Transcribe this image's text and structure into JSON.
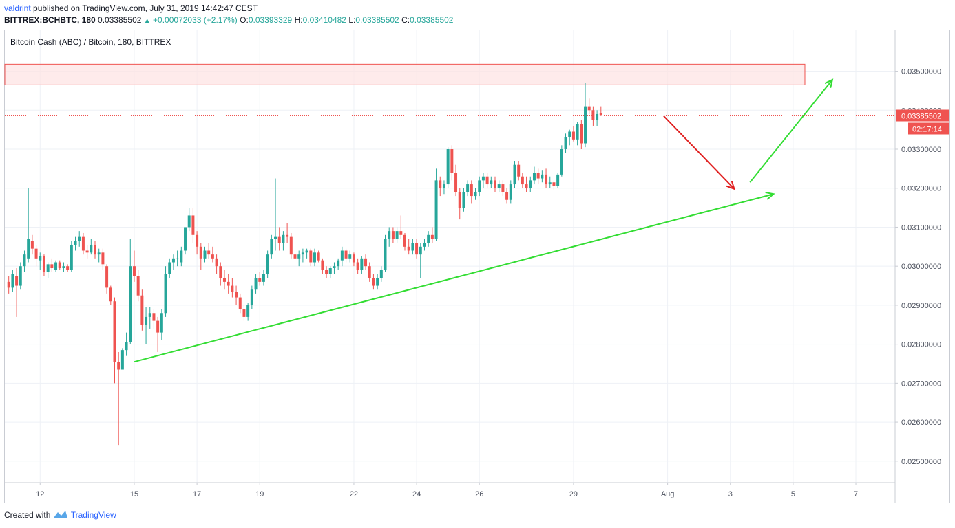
{
  "header": {
    "author": "valdrint",
    "published_text": "published on TradingView.com, July 31, 2019 14:42:47 CEST",
    "symbol": "BITTREX:BCHBTC, 180",
    "last": "0.03385502",
    "change": "+0.00072033 (+2.17%)",
    "o_label": "O:",
    "o_value": "0.03393329",
    "h_label": "H:",
    "h_value": "0.03410482",
    "l_label": "L:",
    "l_value": "0.03385502",
    "c_label": "C:",
    "c_value": "0.03385502"
  },
  "pane_title": "Bitcoin Cash (ABC) / Bitcoin, 180, BITTREX",
  "footer": {
    "created_with": "Created with",
    "brand": "TradingView"
  },
  "price_badge": {
    "price": "0.03385502",
    "countdown": "02:17:14"
  },
  "colors": {
    "up": "#26a69a",
    "down": "#ef5350",
    "trend": "#33dd33",
    "arrow_down": "#e02020",
    "zone_fill": "#fde3e3",
    "zone_stroke": "#ef5350"
  },
  "chart_data": {
    "type": "candlestick",
    "y_ticks": [
      "0.03500000",
      "0.03400000",
      "0.03300000",
      "0.03200000",
      "0.03100000",
      "0.03000000",
      "0.02900000",
      "0.02800000",
      "0.02700000",
      "0.02600000",
      "0.02500000"
    ],
    "y_tick_values": [
      0.035,
      0.034,
      0.033,
      0.032,
      0.031,
      0.03,
      0.029,
      0.028,
      0.027,
      0.026,
      0.025
    ],
    "ylim": [
      0.02445,
      0.03605
    ],
    "x_ticks": [
      "12",
      "15",
      "17",
      "19",
      "22",
      "24",
      "26",
      "29",
      "Aug",
      "3",
      "5",
      "7"
    ],
    "x_tick_values": [
      "2019-07-12",
      "2019-07-15",
      "2019-07-17",
      "2019-07-19",
      "2019-07-22",
      "2019-07-24",
      "2019-07-26",
      "2019-07-29",
      "2019-08-01",
      "2019-08-03",
      "2019-08-05",
      "2019-08-07"
    ],
    "xlim": [
      "2019-07-10 21:00",
      "2019-08-08 06:00"
    ],
    "candle_interval_minutes": 180,
    "first_candle": "2019-07-11 00:00",
    "candles": [
      [
        0.0296,
        0.02975,
        0.0293,
        0.02945
      ],
      [
        0.02945,
        0.0299,
        0.02935,
        0.0298
      ],
      [
        0.02975,
        0.02995,
        0.0287,
        0.0295
      ],
      [
        0.0295,
        0.0301,
        0.0294,
        0.03
      ],
      [
        0.03,
        0.0304,
        0.02985,
        0.0303
      ],
      [
        0.0302,
        0.032,
        0.0301,
        0.0307
      ],
      [
        0.03065,
        0.0308,
        0.0303,
        0.03045
      ],
      [
        0.03045,
        0.03055,
        0.03,
        0.0302
      ],
      [
        0.03015,
        0.03035,
        0.0299,
        0.03025
      ],
      [
        0.03025,
        0.0303,
        0.02975,
        0.02985
      ],
      [
        0.02985,
        0.0301,
        0.0297,
        0.03005
      ],
      [
        0.03005,
        0.0302,
        0.02985,
        0.02995
      ],
      [
        0.0299,
        0.03015,
        0.02985,
        0.0301
      ],
      [
        0.0301,
        0.03015,
        0.0299,
        0.02995
      ],
      [
        0.02995,
        0.0301,
        0.02985,
        0.03
      ],
      [
        0.03,
        0.03005,
        0.02985,
        0.0299
      ],
      [
        0.0299,
        0.03065,
        0.02985,
        0.03055
      ],
      [
        0.03055,
        0.03075,
        0.0304,
        0.03065
      ],
      [
        0.03065,
        0.0309,
        0.0305,
        0.03075
      ],
      [
        0.03075,
        0.03085,
        0.0303,
        0.0304
      ],
      [
        0.0304,
        0.03055,
        0.0302,
        0.03035
      ],
      [
        0.03035,
        0.0307,
        0.0303,
        0.03055
      ],
      [
        0.03055,
        0.03065,
        0.0302,
        0.0303
      ],
      [
        0.0303,
        0.03045,
        0.0301,
        0.03035
      ],
      [
        0.03035,
        0.03045,
        0.0299,
        0.03005
      ],
      [
        0.03,
        0.03005,
        0.0293,
        0.02945
      ],
      [
        0.02945,
        0.0295,
        0.029,
        0.0291
      ],
      [
        0.0291,
        0.0292,
        0.027,
        0.02755
      ],
      [
        0.02755,
        0.0278,
        0.0254,
        0.02735
      ],
      [
        0.02735,
        0.0279,
        0.02735,
        0.02785
      ],
      [
        0.02785,
        0.0283,
        0.0277,
        0.02805
      ],
      [
        0.02805,
        0.0307,
        0.028,
        0.03
      ],
      [
        0.03,
        0.0304,
        0.0296,
        0.02975
      ],
      [
        0.02975,
        0.0299,
        0.0291,
        0.02925
      ],
      [
        0.02925,
        0.0294,
        0.02835,
        0.0285
      ],
      [
        0.0285,
        0.02895,
        0.028,
        0.0287
      ],
      [
        0.0287,
        0.02895,
        0.0284,
        0.0288
      ],
      [
        0.0288,
        0.0289,
        0.0284,
        0.0286
      ],
      [
        0.0286,
        0.0287,
        0.0278,
        0.0283
      ],
      [
        0.0283,
        0.0289,
        0.0281,
        0.0288
      ],
      [
        0.0288,
        0.03,
        0.0287,
        0.0298
      ],
      [
        0.0298,
        0.0302,
        0.0297,
        0.0301
      ],
      [
        0.0301,
        0.0303,
        0.0299,
        0.0302
      ],
      [
        0.0302,
        0.0304,
        0.03,
        0.0302
      ],
      [
        0.0301,
        0.0305,
        0.03,
        0.0304
      ],
      [
        0.0304,
        0.031,
        0.0303,
        0.031
      ],
      [
        0.031,
        0.0315,
        0.0309,
        0.0313
      ],
      [
        0.0313,
        0.0315,
        0.0306,
        0.0308
      ],
      [
        0.0308,
        0.0309,
        0.0303,
        0.0305
      ],
      [
        0.0305,
        0.0306,
        0.0299,
        0.0302
      ],
      [
        0.0302,
        0.0305,
        0.0301,
        0.0304
      ],
      [
        0.0304,
        0.0306,
        0.0302,
        0.0303
      ],
      [
        0.0303,
        0.0305,
        0.0301,
        0.0302
      ],
      [
        0.0302,
        0.0303,
        0.0298,
        0.03
      ],
      [
        0.03,
        0.0301,
        0.0295,
        0.0297
      ],
      [
        0.0297,
        0.0299,
        0.0294,
        0.0296
      ],
      [
        0.0296,
        0.0298,
        0.0293,
        0.0295
      ],
      [
        0.0295,
        0.0297,
        0.0292,
        0.02935
      ],
      [
        0.02935,
        0.0295,
        0.029,
        0.0292
      ],
      [
        0.0292,
        0.0293,
        0.0288,
        0.0289
      ],
      [
        0.0289,
        0.029,
        0.0286,
        0.0287
      ],
      [
        0.0287,
        0.02905,
        0.0286,
        0.029
      ],
      [
        0.029,
        0.0295,
        0.0289,
        0.0294
      ],
      [
        0.0294,
        0.0298,
        0.0293,
        0.0297
      ],
      [
        0.0297,
        0.02985,
        0.0295,
        0.0296
      ],
      [
        0.0296,
        0.0299,
        0.0295,
        0.0298
      ],
      [
        0.0298,
        0.0304,
        0.0297,
        0.0303
      ],
      [
        0.0303,
        0.0308,
        0.0302,
        0.0307
      ],
      [
        0.0307,
        0.03225,
        0.0304,
        0.03075
      ],
      [
        0.03075,
        0.031,
        0.0304,
        0.0306
      ],
      [
        0.0306,
        0.0309,
        0.0304,
        0.0308
      ],
      [
        0.0308,
        0.0311,
        0.0306,
        0.03075
      ],
      [
        0.03075,
        0.03085,
        0.0302,
        0.0303
      ],
      [
        0.0303,
        0.0304,
        0.0301,
        0.0302
      ],
      [
        0.0302,
        0.0304,
        0.03,
        0.0303
      ],
      [
        0.0303,
        0.03045,
        0.0301,
        0.03035
      ],
      [
        0.03035,
        0.03045,
        0.0302,
        0.0304
      ],
      [
        0.0304,
        0.03045,
        0.03,
        0.0301
      ],
      [
        0.0301,
        0.03045,
        0.03,
        0.03035
      ],
      [
        0.03035,
        0.0304,
        0.0301,
        0.03015
      ],
      [
        0.03015,
        0.0302,
        0.0298,
        0.0299
      ],
      [
        0.0299,
        0.03,
        0.0297,
        0.0298
      ],
      [
        0.0298,
        0.03,
        0.0297,
        0.02995
      ],
      [
        0.02995,
        0.0301,
        0.0298,
        0.03
      ],
      [
        0.03,
        0.0302,
        0.0299,
        0.03015
      ],
      [
        0.03015,
        0.0305,
        0.03,
        0.0304
      ],
      [
        0.0304,
        0.03045,
        0.0301,
        0.0302
      ],
      [
        0.0302,
        0.0304,
        0.0301,
        0.0303
      ],
      [
        0.0303,
        0.03035,
        0.03,
        0.0301
      ],
      [
        0.0301,
        0.0302,
        0.0298,
        0.0299
      ],
      [
        0.0299,
        0.03025,
        0.0298,
        0.0302
      ],
      [
        0.0302,
        0.0303,
        0.0299,
        0.03
      ],
      [
        0.03,
        0.0301,
        0.0296,
        0.0297
      ],
      [
        0.0297,
        0.0298,
        0.0294,
        0.0295
      ],
      [
        0.0295,
        0.0298,
        0.0294,
        0.0297
      ],
      [
        0.0297,
        0.03,
        0.0296,
        0.0299
      ],
      [
        0.0299,
        0.0308,
        0.02985,
        0.0307
      ],
      [
        0.0307,
        0.031,
        0.0305,
        0.0309
      ],
      [
        0.0309,
        0.031,
        0.0306,
        0.0307
      ],
      [
        0.0307,
        0.031,
        0.0306,
        0.0309
      ],
      [
        0.0309,
        0.0313,
        0.0307,
        0.0308
      ],
      [
        0.0308,
        0.03085,
        0.0304,
        0.0305
      ],
      [
        0.0305,
        0.0307,
        0.0303,
        0.0304
      ],
      [
        0.0304,
        0.0307,
        0.0303,
        0.0306
      ],
      [
        0.0306,
        0.0307,
        0.0302,
        0.0303
      ],
      [
        0.0303,
        0.0306,
        0.0297,
        0.0305
      ],
      [
        0.0305,
        0.0307,
        0.0304,
        0.0306
      ],
      [
        0.0306,
        0.0309,
        0.0305,
        0.0308
      ],
      [
        0.0308,
        0.031,
        0.0306,
        0.0307
      ],
      [
        0.0307,
        0.0325,
        0.03065,
        0.0322
      ],
      [
        0.0322,
        0.0323,
        0.0318,
        0.032
      ],
      [
        0.032,
        0.0322,
        0.03185,
        0.0321
      ],
      [
        0.0321,
        0.03305,
        0.032,
        0.033
      ],
      [
        0.033,
        0.0331,
        0.0322,
        0.0324
      ],
      [
        0.0324,
        0.0326,
        0.0318,
        0.0319
      ],
      [
        0.0319,
        0.032,
        0.0312,
        0.0315
      ],
      [
        0.0315,
        0.032,
        0.0314,
        0.0319
      ],
      [
        0.0319,
        0.0322,
        0.0318,
        0.0321
      ],
      [
        0.0321,
        0.0322,
        0.0316,
        0.0318
      ],
      [
        0.0318,
        0.032,
        0.0317,
        0.0319
      ],
      [
        0.0319,
        0.0323,
        0.0318,
        0.0322
      ],
      [
        0.0322,
        0.0324,
        0.032,
        0.0323
      ],
      [
        0.0323,
        0.0324,
        0.032,
        0.0321
      ],
      [
        0.0321,
        0.0323,
        0.032,
        0.0322
      ],
      [
        0.0322,
        0.0323,
        0.0319,
        0.032
      ],
      [
        0.032,
        0.0322,
        0.0319,
        0.0321
      ],
      [
        0.0321,
        0.0322,
        0.0318,
        0.0319
      ],
      [
        0.0319,
        0.032,
        0.0316,
        0.0317
      ],
      [
        0.0317,
        0.0322,
        0.0316,
        0.0321
      ],
      [
        0.0321,
        0.0327,
        0.032,
        0.0326
      ],
      [
        0.0326,
        0.0327,
        0.0322,
        0.0323
      ],
      [
        0.0323,
        0.0324,
        0.032,
        0.0321
      ],
      [
        0.0321,
        0.0323,
        0.0319,
        0.032
      ],
      [
        0.032,
        0.0323,
        0.0319,
        0.0322
      ],
      [
        0.0322,
        0.03255,
        0.0321,
        0.0324
      ],
      [
        0.0324,
        0.0325,
        0.0321,
        0.03225
      ],
      [
        0.03225,
        0.03245,
        0.03215,
        0.03235
      ],
      [
        0.03235,
        0.0325,
        0.032,
        0.0321
      ],
      [
        0.0321,
        0.0323,
        0.032,
        0.03215
      ],
      [
        0.03215,
        0.0322,
        0.03195,
        0.03205
      ],
      [
        0.03205,
        0.0324,
        0.032,
        0.03235
      ],
      [
        0.03235,
        0.0331,
        0.0323,
        0.033
      ],
      [
        0.033,
        0.0334,
        0.0329,
        0.0333
      ],
      [
        0.0333,
        0.0335,
        0.0331,
        0.03345
      ],
      [
        0.03345,
        0.0336,
        0.0332,
        0.03325
      ],
      [
        0.03325,
        0.0337,
        0.0331,
        0.03365
      ],
      [
        0.03365,
        0.03375,
        0.033,
        0.03315
      ],
      [
        0.03315,
        0.0347,
        0.03305,
        0.0341
      ],
      [
        0.0341,
        0.0343,
        0.0339,
        0.034
      ],
      [
        0.034,
        0.0341,
        0.0336,
        0.03375
      ],
      [
        0.03375,
        0.034,
        0.0336,
        0.0339
      ],
      [
        0.03393,
        0.0341,
        0.03385,
        0.03386
      ]
    ],
    "annotations": {
      "resistance_zone": {
        "y_from": 0.03465,
        "y_to": 0.03518,
        "x_from": "2019-07-10 21:00",
        "x_to": "2019-08-05 09:00"
      },
      "ascending_support": {
        "from": [
          "2019-07-15 00:00",
          0.02755
        ],
        "to": [
          "2019-08-04 09:00",
          0.03185
        ]
      },
      "projection_down": {
        "from": [
          "2019-07-31 21:00",
          0.03385
        ],
        "to": [
          "2019-08-03 03:00",
          0.03198
        ]
      },
      "projection_up": {
        "from": [
          "2019-08-03 15:00",
          0.03215
        ],
        "to": [
          "2019-08-06 06:00",
          0.03478
        ]
      },
      "last_price_line": 0.03385502
    }
  }
}
